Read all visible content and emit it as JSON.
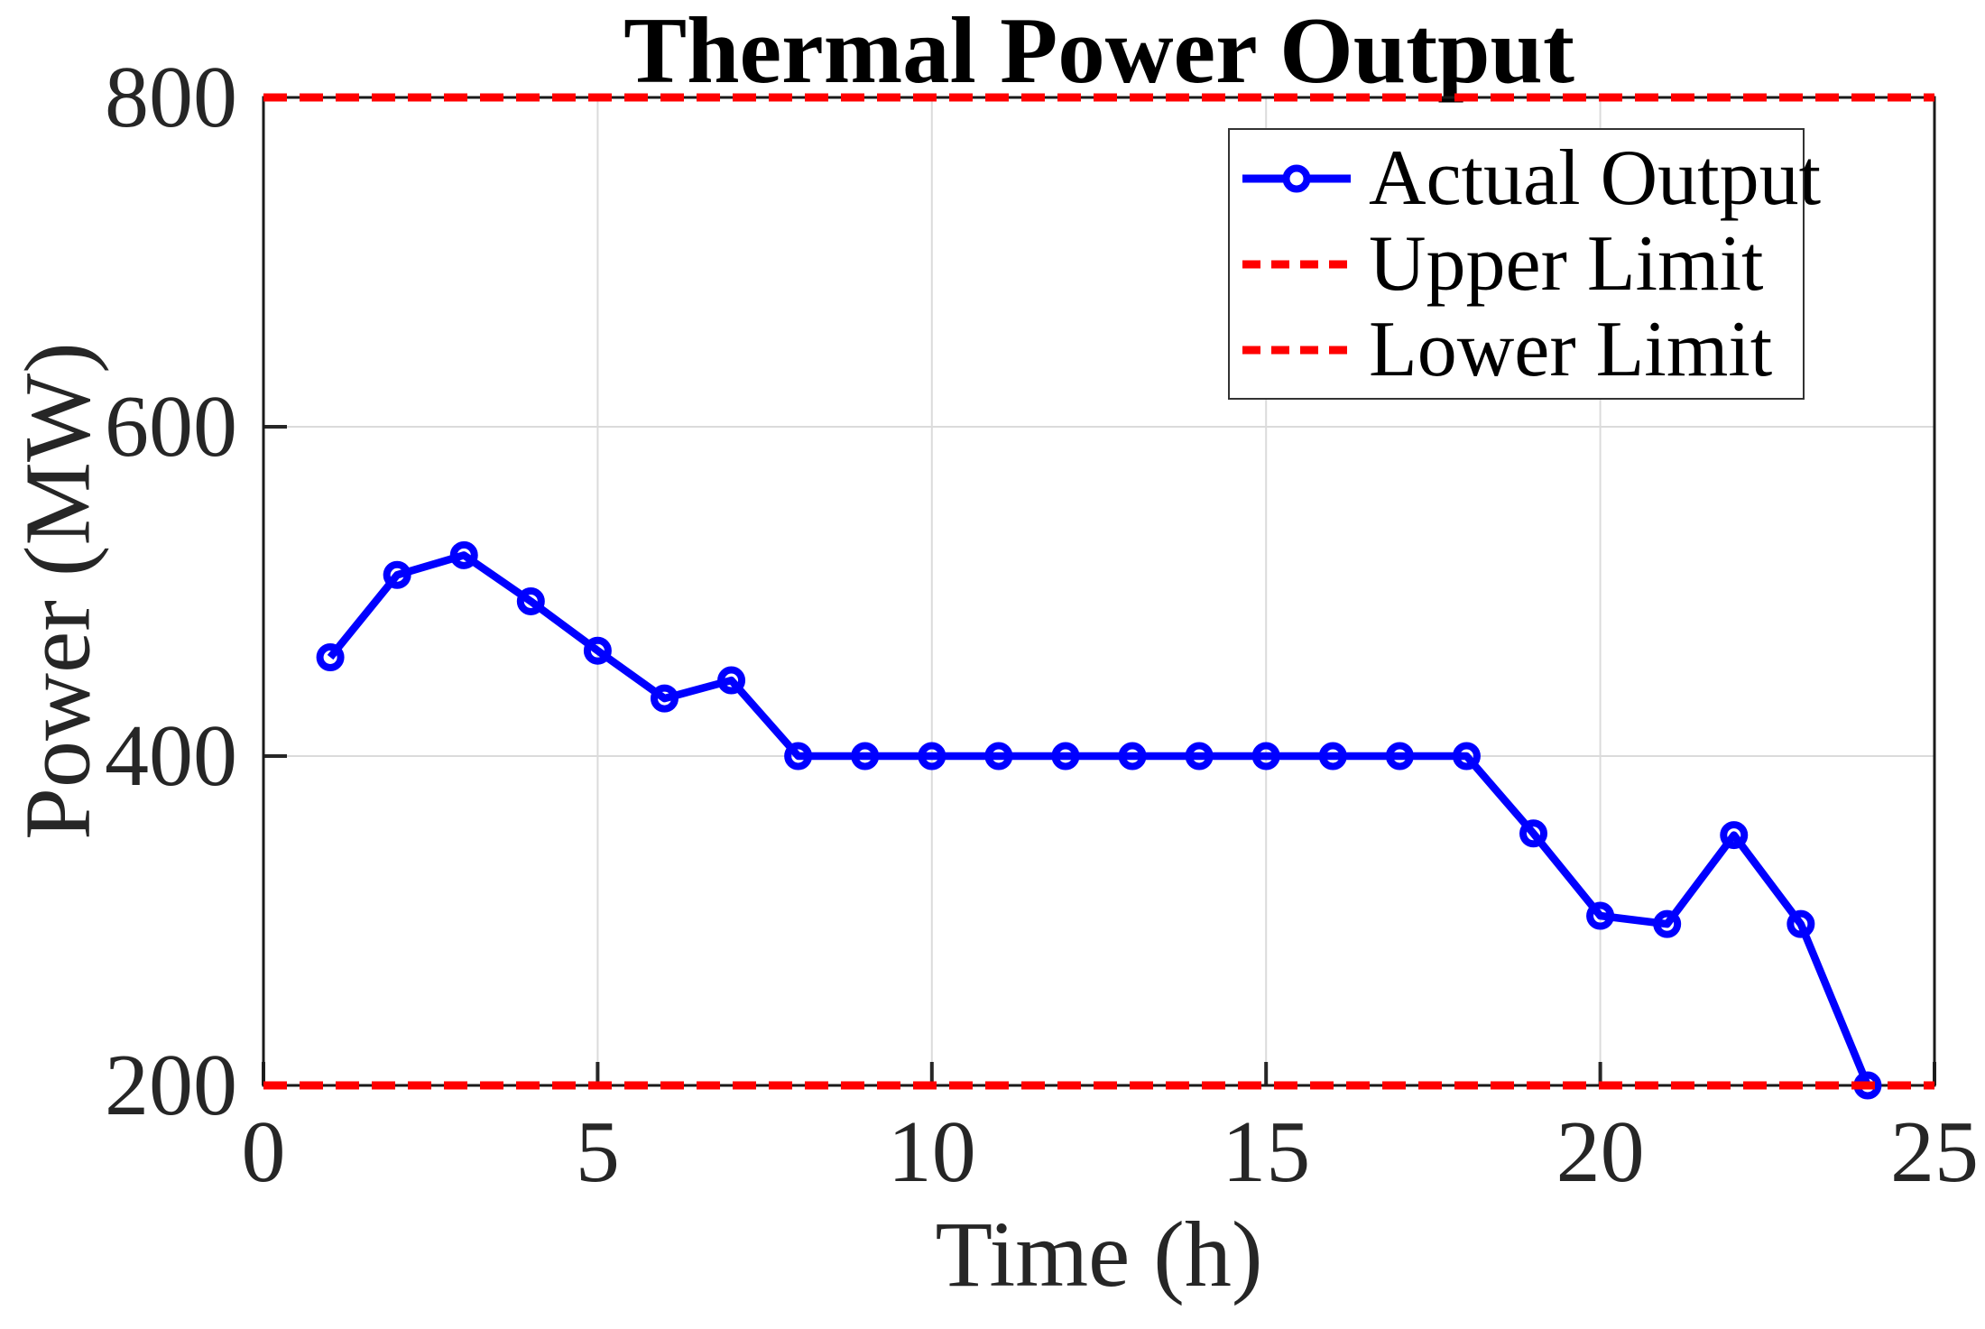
{
  "figure": {
    "background": "#ffffff"
  },
  "chart_data": {
    "type": "line",
    "title": "Thermal Power Output",
    "xlabel": "Time (h)",
    "ylabel": "Power (MW)",
    "xlim": [
      0,
      25
    ],
    "ylim": [
      200,
      800
    ],
    "xticks": [
      0,
      5,
      10,
      15,
      20,
      25
    ],
    "yticks": [
      200,
      400,
      600,
      800
    ],
    "grid": true,
    "legend_position": "top-right",
    "x": [
      1,
      2,
      3,
      4,
      5,
      6,
      7,
      8,
      9,
      10,
      11,
      12,
      13,
      14,
      15,
      16,
      17,
      18,
      19,
      20,
      21,
      22,
      23,
      24
    ],
    "series": [
      {
        "name": "Actual Output",
        "kind": "line-marker",
        "color": "#0000FF",
        "marker": "circle",
        "line_style": "solid",
        "values": [
          460,
          510,
          522,
          494,
          464,
          435,
          446,
          400,
          400,
          400,
          400,
          400,
          400,
          400,
          400,
          400,
          400,
          400,
          353,
          303,
          298,
          352,
          298,
          200
        ]
      },
      {
        "name": "Upper Limit",
        "kind": "hline",
        "color": "#FF0000",
        "line_style": "dashed",
        "value": 800
      },
      {
        "name": "Lower Limit",
        "kind": "hline",
        "color": "#FF0000",
        "line_style": "dashed",
        "value": 200
      }
    ],
    "style_colors": {
      "grid": "#DBDBDB",
      "axis_frame": "#1A1A1A",
      "tick": "#262626",
      "tick_text": "#262626",
      "title_text": "#000000"
    }
  }
}
